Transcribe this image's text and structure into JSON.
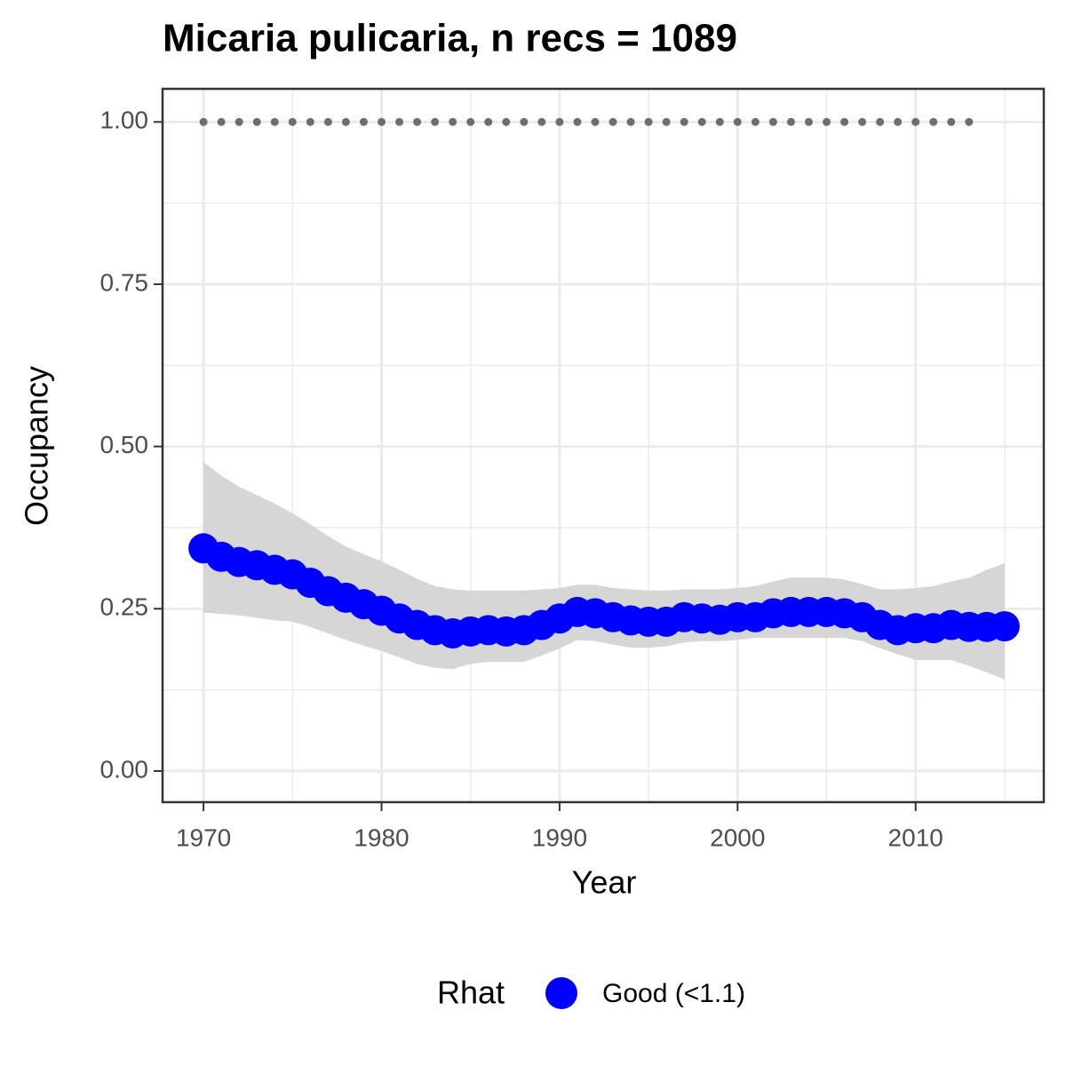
{
  "chart_data": {
    "type": "line",
    "title": "Micaria pulicaria, n recs = 1089",
    "x_label": "Year",
    "y_label": "Occupancy",
    "legend_title": "Rhat",
    "legend_position": "bottom",
    "grid": true,
    "xlim": [
      1967.7,
      2017.2
    ],
    "ylim": [
      -0.048,
      1.051
    ],
    "xticks": [
      1970,
      1980,
      1990,
      2000,
      2010
    ],
    "yticks": [
      {
        "value": 0,
        "label": "0.00"
      },
      {
        "value": 0.25,
        "label": "0.25"
      },
      {
        "value": 0.5,
        "label": "0.50"
      },
      {
        "value": 0.75,
        "label": "0.75"
      },
      {
        "value": 1,
        "label": "1.00"
      }
    ],
    "x_minor_grid": [
      1975,
      1985,
      1995,
      2005,
      2015
    ],
    "y_minor_grid": [
      0.125,
      0.375,
      0.625,
      0.875
    ],
    "x": [
      1970,
      1971,
      1972,
      1973,
      1974,
      1975,
      1976,
      1977,
      1978,
      1979,
      1980,
      1981,
      1982,
      1983,
      1984,
      1985,
      1986,
      1987,
      1988,
      1989,
      1990,
      1991,
      1992,
      1993,
      1994,
      1995,
      1996,
      1997,
      1998,
      1999,
      2000,
      2001,
      2002,
      2003,
      2004,
      2005,
      2006,
      2007,
      2008,
      2009,
      2010,
      2011,
      2012,
      2013,
      2014,
      2015
    ],
    "series": [
      {
        "name": "Good (<1.1)",
        "color": "#0000ff",
        "values": [
          0.343,
          0.33,
          0.322,
          0.317,
          0.31,
          0.303,
          0.29,
          0.277,
          0.267,
          0.257,
          0.247,
          0.235,
          0.225,
          0.217,
          0.212,
          0.215,
          0.217,
          0.215,
          0.217,
          0.225,
          0.235,
          0.245,
          0.243,
          0.237,
          0.232,
          0.23,
          0.23,
          0.237,
          0.235,
          0.233,
          0.237,
          0.237,
          0.243,
          0.245,
          0.245,
          0.245,
          0.243,
          0.237,
          0.225,
          0.217,
          0.22,
          0.22,
          0.225,
          0.222,
          0.222,
          0.223
        ],
        "upper": [
          0.476,
          0.455,
          0.438,
          0.425,
          0.412,
          0.397,
          0.38,
          0.362,
          0.346,
          0.334,
          0.323,
          0.31,
          0.296,
          0.285,
          0.28,
          0.278,
          0.278,
          0.278,
          0.278,
          0.28,
          0.282,
          0.287,
          0.287,
          0.282,
          0.28,
          0.278,
          0.278,
          0.28,
          0.28,
          0.28,
          0.282,
          0.285,
          0.292,
          0.298,
          0.298,
          0.298,
          0.295,
          0.288,
          0.28,
          0.28,
          0.282,
          0.285,
          0.292,
          0.298,
          0.31,
          0.32
        ],
        "lower": [
          0.244,
          0.242,
          0.24,
          0.236,
          0.232,
          0.23,
          0.222,
          0.212,
          0.202,
          0.193,
          0.185,
          0.175,
          0.165,
          0.159,
          0.157,
          0.165,
          0.168,
          0.168,
          0.168,
          0.178,
          0.189,
          0.202,
          0.2,
          0.195,
          0.19,
          0.19,
          0.192,
          0.198,
          0.2,
          0.2,
          0.202,
          0.205,
          0.205,
          0.205,
          0.205,
          0.205,
          0.205,
          0.2,
          0.189,
          0.18,
          0.171,
          0.171,
          0.171,
          0.162,
          0.152,
          0.141
        ],
        "band_color": "#d6d6d6"
      }
    ],
    "reference": {
      "color": "#6e6e6e",
      "x": [
        1970,
        1971,
        1972,
        1973,
        1974,
        1975,
        1976,
        1977,
        1978,
        1979,
        1980,
        1981,
        1982,
        1983,
        1984,
        1985,
        1986,
        1987,
        1988,
        1989,
        1990,
        1991,
        1992,
        1993,
        1994,
        1995,
        1996,
        1997,
        1998,
        1999,
        2000,
        2001,
        2002,
        2003,
        2004,
        2005,
        2006,
        2007,
        2008,
        2009,
        2010,
        2011,
        2012,
        2013
      ],
      "values": [
        1,
        1,
        1,
        1,
        1,
        1,
        1,
        1,
        1,
        1,
        1,
        1,
        1,
        1,
        1,
        1,
        1,
        1,
        1,
        1,
        1,
        1,
        1,
        1,
        1,
        1,
        1,
        1,
        1,
        1,
        1,
        1,
        1,
        1,
        1,
        1,
        1,
        1,
        1,
        1,
        1,
        1,
        1,
        1
      ]
    }
  }
}
